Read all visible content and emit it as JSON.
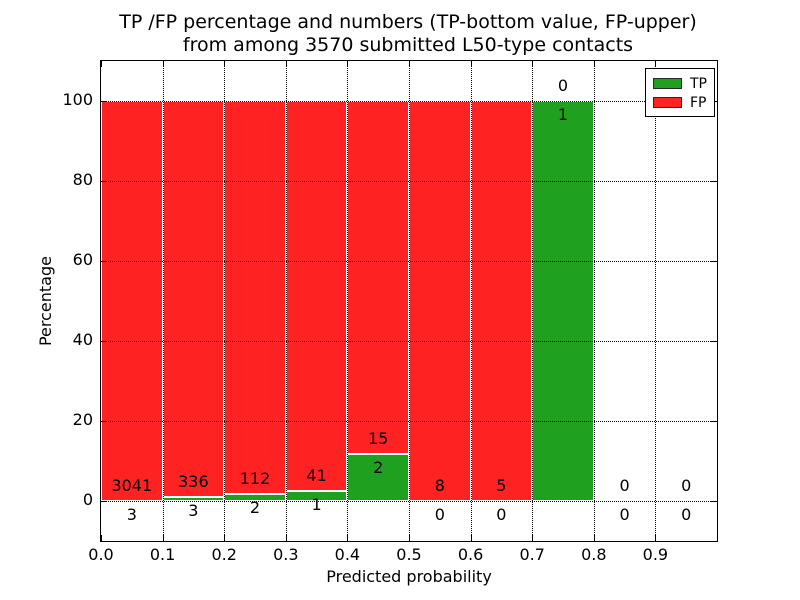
{
  "chart_data": {
    "type": "bar",
    "stacked": true,
    "title_line1": "TP /FP percentage and numbers (TP-bottom value, FP-upper)",
    "title_line2": "from among 3570 submitted L50-type contacts",
    "xlabel": "Predicted probability",
    "ylabel": "Percentage",
    "x_tick_labels": [
      "0.0",
      "0.1",
      "0.2",
      "0.3",
      "0.4",
      "0.5",
      "0.6",
      "0.7",
      "0.8",
      "0.9"
    ],
    "y_ticks": [
      0,
      20,
      40,
      60,
      80,
      100
    ],
    "xlim": [
      0.0,
      1.0
    ],
    "ylim": [
      -10,
      110
    ],
    "bin_width": 0.1,
    "grid_style": "dotted",
    "bar_edge_color": "#ffffff",
    "legend": {
      "position": "upper-right",
      "items": [
        {
          "label": "TP",
          "color": "#1fa01f"
        },
        {
          "label": "FP",
          "color": "#ff2222"
        }
      ]
    },
    "bins": [
      {
        "range": "0.0-0.1",
        "tp": 3,
        "fp": 3041,
        "tp_percent": 0.1
      },
      {
        "range": "0.1-0.2",
        "tp": 3,
        "fp": 336,
        "tp_percent": 0.89
      },
      {
        "range": "0.2-0.3",
        "tp": 2,
        "fp": 112,
        "tp_percent": 1.75
      },
      {
        "range": "0.3-0.4",
        "tp": 1,
        "fp": 41,
        "tp_percent": 2.38
      },
      {
        "range": "0.4-0.5",
        "tp": 2,
        "fp": 15,
        "tp_percent": 11.76
      },
      {
        "range": "0.5-0.6",
        "tp": 0,
        "fp": 8,
        "tp_percent": 0
      },
      {
        "range": "0.6-0.7",
        "tp": 0,
        "fp": 5,
        "tp_percent": 0
      },
      {
        "range": "0.7-0.8",
        "tp": 1,
        "fp": 0,
        "tp_percent": 100
      },
      {
        "range": "0.8-0.9",
        "tp": 0,
        "fp": 0,
        "tp_percent": 0
      },
      {
        "range": "0.9-1.0",
        "tp": 0,
        "fp": 0,
        "tp_percent": 0
      }
    ]
  }
}
